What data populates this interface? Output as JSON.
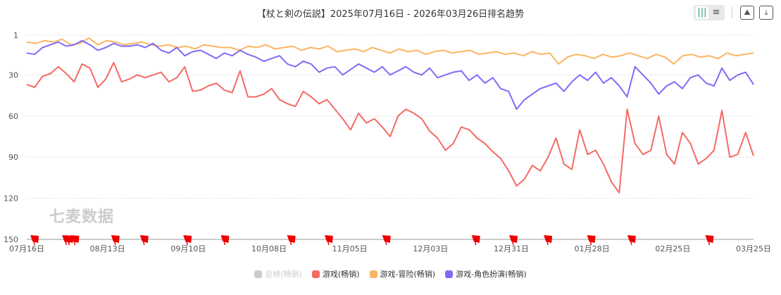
{
  "title": "【杖と剣の伝説】2025年07月16日 - 2026年03月26日排名趋势",
  "watermark": "七麦数据",
  "toolbar": {
    "bar_icon": "bar-chart-icon",
    "list_icon": "list-icon",
    "image_icon": "save-image-icon",
    "download_icon": "download-icon"
  },
  "chart_data": {
    "type": "line",
    "title": "【杖と剣の伝説】2025年07月16日 - 2026年03月26日排名趋势",
    "ylim": [
      1,
      150
    ],
    "y_inverted": true,
    "yticks": [
      "1",
      "30",
      "60",
      "90",
      "120",
      "150"
    ],
    "ytick_values": [
      1,
      30,
      60,
      90,
      120,
      150
    ],
    "xticks": [
      "07月16日",
      "08月13日",
      "09月10日",
      "10月08日",
      "11月05日",
      "12月03日",
      "12月31日",
      "01月28日",
      "02月25日",
      "03月25日"
    ],
    "xtick_days": [
      0,
      28,
      56,
      84,
      112,
      140,
      168,
      196,
      224,
      252
    ],
    "total_days": 252,
    "grid": true,
    "legend_position": "bottom",
    "event_days": [
      2,
      13,
      14,
      16,
      30,
      40,
      55,
      68,
      91,
      104,
      124,
      155,
      168,
      180,
      195,
      209,
      236
    ],
    "series": [
      {
        "name": "总榜(畅销)",
        "color": "#cccccc",
        "hidden": true,
        "values": []
      },
      {
        "name": "游戏(畅销)",
        "color": "#f46a63",
        "values": [
          37,
          39,
          31,
          29,
          24,
          29,
          35,
          22,
          25,
          39,
          33,
          21,
          35,
          33,
          30,
          32,
          30,
          28,
          35,
          32,
          24,
          42,
          41,
          38,
          36,
          41,
          43,
          27,
          46,
          46,
          44,
          40,
          48,
          51,
          53,
          42,
          46,
          51,
          48,
          55,
          62,
          70,
          58,
          65,
          62,
          68,
          75,
          60,
          55,
          58,
          62,
          71,
          76,
          85,
          80,
          68,
          70,
          76,
          80,
          86,
          91,
          100,
          111,
          106,
          96,
          100,
          90,
          76,
          95,
          99,
          70,
          88,
          85,
          95,
          108,
          116,
          55,
          80,
          88,
          85,
          60,
          88,
          95,
          72,
          80,
          95,
          91,
          85,
          56,
          90,
          88,
          72,
          89
        ]
      },
      {
        "name": "游戏-冒险(畅销)",
        "color": "#fbb462",
        "values": [
          6,
          7,
          5,
          6,
          4,
          8,
          7,
          3,
          8,
          5,
          6,
          8,
          7,
          6,
          8,
          9,
          8,
          10,
          9,
          11,
          8,
          9,
          10,
          10,
          12,
          9,
          10,
          8,
          11,
          10,
          9,
          12,
          10,
          11,
          9,
          13,
          12,
          11,
          13,
          10,
          12,
          14,
          11,
          13,
          12,
          15,
          13,
          12,
          14,
          13,
          12,
          15,
          14,
          13,
          15,
          14,
          16,
          13,
          15,
          14,
          22,
          17,
          15,
          16,
          18,
          15,
          17,
          16,
          14,
          16,
          18,
          15,
          17,
          22,
          16,
          15,
          17,
          16,
          18,
          14,
          16,
          15,
          14
        ]
      },
      {
        "name": "游戏-角色扮演(畅销)",
        "color": "#7e6cf8",
        "values": [
          14,
          15,
          10,
          8,
          6,
          9,
          8,
          5,
          8,
          12,
          10,
          7,
          9,
          9,
          8,
          10,
          7,
          12,
          14,
          10,
          16,
          13,
          12,
          15,
          18,
          14,
          16,
          12,
          15,
          17,
          20,
          18,
          16,
          22,
          24,
          20,
          22,
          28,
          25,
          24,
          30,
          26,
          22,
          25,
          28,
          24,
          30,
          27,
          24,
          28,
          30,
          25,
          32,
          30,
          28,
          27,
          34,
          30,
          36,
          32,
          40,
          42,
          55,
          48,
          44,
          40,
          38,
          36,
          42,
          35,
          30,
          34,
          28,
          36,
          32,
          38,
          46,
          24,
          30,
          36,
          44,
          38,
          35,
          40,
          32,
          30,
          36,
          38,
          25,
          34,
          30,
          28,
          37
        ]
      }
    ]
  }
}
